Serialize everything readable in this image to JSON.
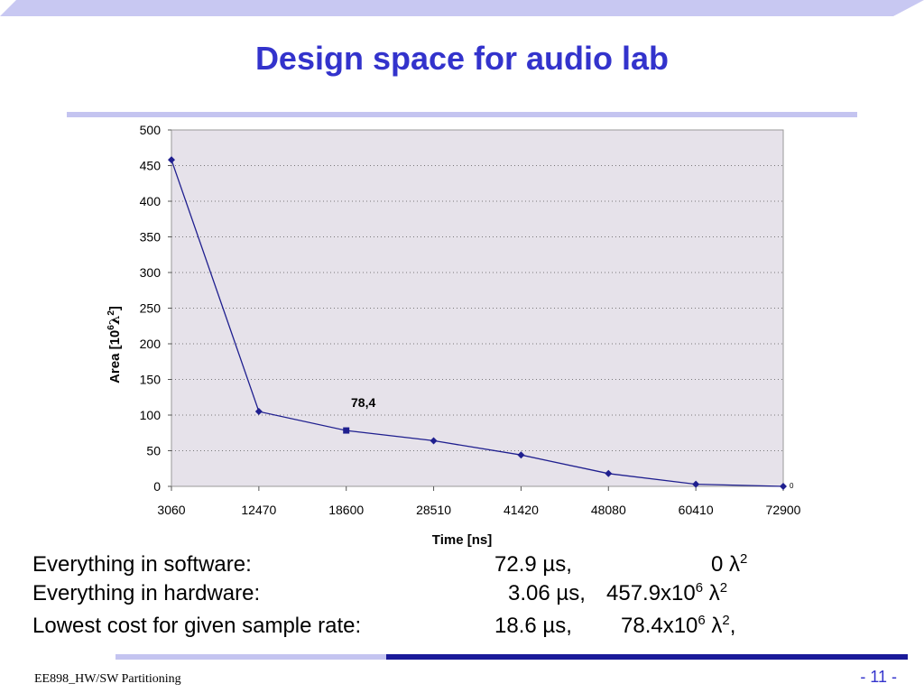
{
  "slide": {
    "title": "Design space for audio lab",
    "footer_left": "EE898_HW/SW Partitioning",
    "page_number": "-  11 -"
  },
  "colors": {
    "title": "#3333cc",
    "rule": "#c4c4f0",
    "plot_bg": "#e6e2ea",
    "series": "#1f1f8f",
    "footer_dark": "#1a1a99"
  },
  "chart_data": {
    "type": "line",
    "xlabel": "Time [ns]",
    "ylabel_main": "Area [10",
    "ylabel_exp": "6",
    "ylabel_lambda": "λ",
    "ylabel_sq": "2",
    "ylabel_close": "]",
    "categories": [
      "3060",
      "12470",
      "18600",
      "28510",
      "41420",
      "48080",
      "60410",
      "72900"
    ],
    "series": [
      {
        "values": [
          458,
          105,
          78.4,
          64,
          44,
          18,
          3,
          0
        ]
      }
    ],
    "ylim": [
      0,
      500
    ],
    "yticks": [
      "0",
      "50",
      "100",
      "150",
      "200",
      "250",
      "300",
      "350",
      "400",
      "450",
      "500"
    ],
    "grid": "horizontal dotted",
    "highlight_index": 2,
    "annotations": [
      {
        "text": "78,4",
        "index": 2
      },
      {
        "text": "0",
        "index": 7
      }
    ]
  },
  "summary": {
    "rows": [
      {
        "label": "Everything in software:",
        "time": "72.9   µs,",
        "area": "0 λ",
        "area_sup": "2",
        "area_tail": ""
      },
      {
        "label": "Everything in hardware:",
        "time": "3.06 µs,",
        "area": "457.9x10",
        "area_exp": "6",
        "area_lambda": " λ",
        "area_sup": "2",
        "area_tail": ""
      },
      {
        "label": "Lowest cost for given sample rate:",
        "time": "18.6  µs,",
        "area": "78.4x10",
        "area_exp": "6",
        "area_lambda": " λ",
        "area_sup": "2",
        "area_tail": ","
      }
    ]
  }
}
